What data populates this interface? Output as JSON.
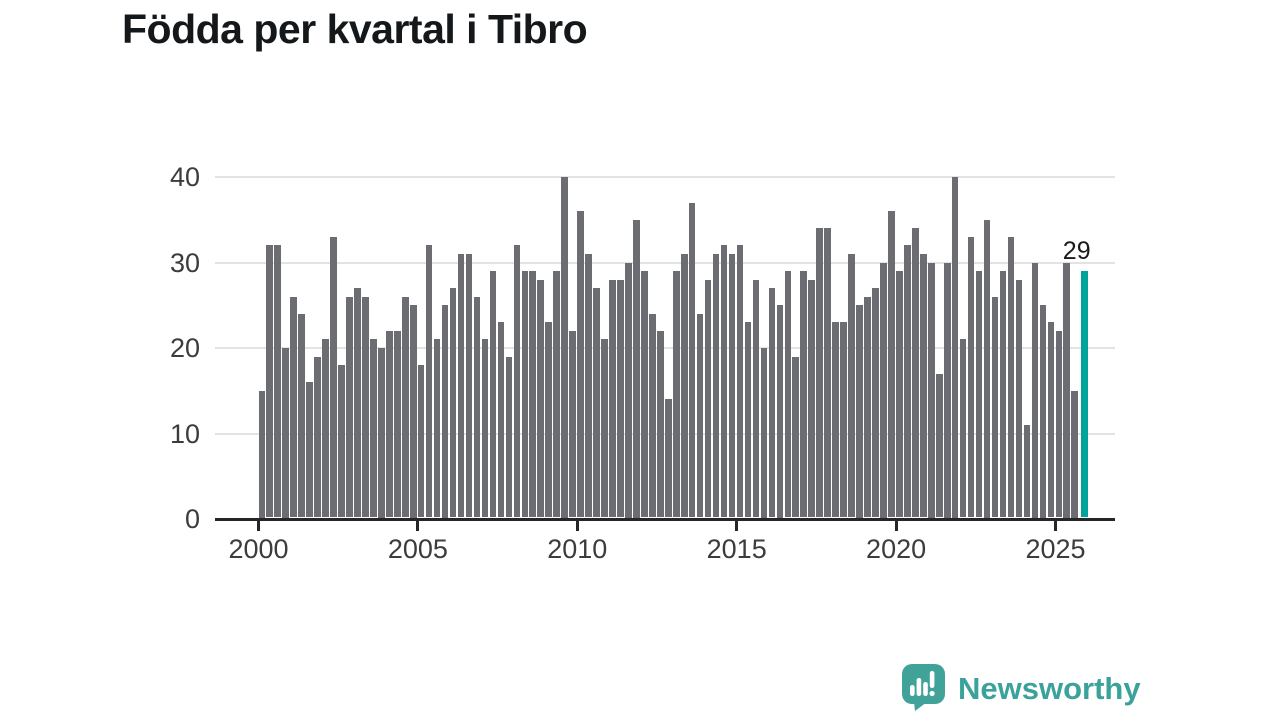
{
  "title": "Födda per kvartal i Tibro",
  "chart_data": {
    "type": "bar",
    "title": "Födda per kvartal i Tibro",
    "xlabel": "",
    "ylabel": "",
    "ylim": [
      0,
      40
    ],
    "grid": "horizontal",
    "bar_color": "#6c6c73",
    "start_year_label": "2000",
    "values": [
      15,
      32,
      32,
      20,
      26,
      24,
      16,
      19,
      21,
      33,
      18,
      26,
      27,
      26,
      21,
      20,
      22,
      22,
      26,
      25,
      18,
      32,
      21,
      25,
      27,
      31,
      31,
      26,
      21,
      29,
      23,
      19,
      32,
      29,
      29,
      28,
      23,
      29,
      40,
      22,
      36,
      31,
      27,
      21,
      28,
      28,
      30,
      35,
      29,
      24,
      22,
      14,
      29,
      31,
      37,
      24,
      28,
      31,
      32,
      31,
      32,
      23,
      28,
      20,
      27,
      25,
      29,
      19,
      29,
      28,
      34,
      34,
      23,
      23,
      31,
      25,
      26,
      27,
      30,
      36,
      29,
      32,
      34,
      31,
      30,
      17,
      30,
      40,
      21,
      33,
      29,
      35,
      26,
      29,
      33,
      28,
      11,
      30,
      25,
      23,
      22,
      30,
      15,
      29
    ],
    "y_ticks": [
      {
        "label": "0",
        "value": 0
      },
      {
        "label": "10",
        "value": 10
      },
      {
        "label": "20",
        "value": 20
      },
      {
        "label": "30",
        "value": 30
      },
      {
        "label": "40",
        "value": 40
      }
    ],
    "x_ticks": [
      {
        "label": "2000",
        "bar_index": 0
      },
      {
        "label": "2005",
        "bar_index": 20
      },
      {
        "label": "2010",
        "bar_index": 40
      },
      {
        "label": "2015",
        "bar_index": 60
      },
      {
        "label": "2020",
        "bar_index": 80
      },
      {
        "label": "2025",
        "bar_index": 100
      }
    ],
    "highlight": {
      "label": "29",
      "value": 29,
      "color": "#00a49a",
      "position": "last-bar"
    }
  },
  "logo": {
    "text": "Newsworthy",
    "color": "#3ba29b",
    "icon": "speech-bubble-bar-chart-icon"
  }
}
